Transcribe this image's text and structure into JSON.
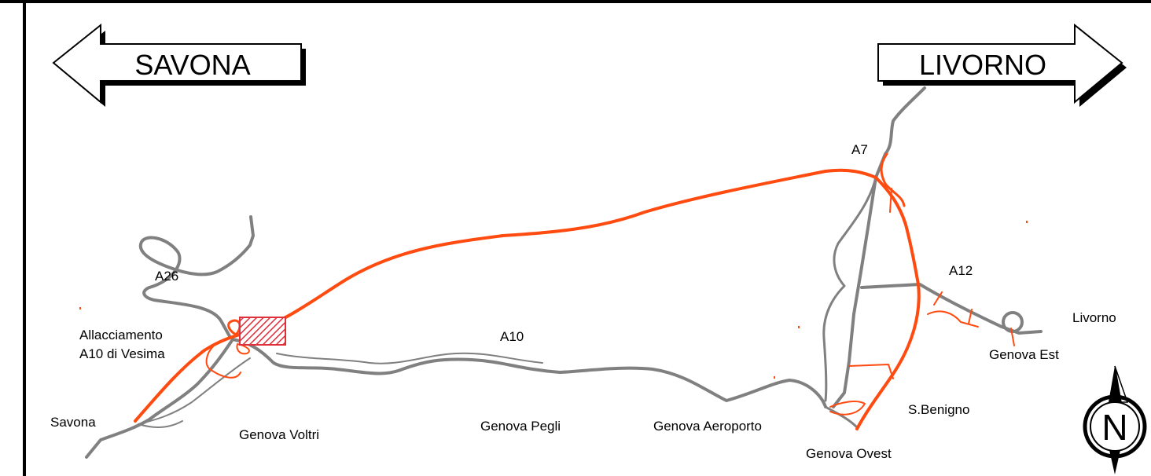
{
  "signs": {
    "west": "SAVONA",
    "east": "LIVORNO"
  },
  "roads": {
    "a26": "A26",
    "a10": "A10",
    "a7": "A7",
    "a12": "A12"
  },
  "places": {
    "allacciamento_1": "Allacciamento",
    "allacciamento_2": "A10 di Vesima",
    "savona": "Savona",
    "voltri": "Genova Voltri",
    "pegli": "Genova Pegli",
    "aeroporto": "Genova Aeroporto",
    "ovest": "Genova Ovest",
    "benigno": "S.Benigno",
    "est": "Genova Est",
    "livorno": "Livorno"
  },
  "compass": {
    "letter": "N"
  },
  "colors": {
    "existing_road": "#808080",
    "new_road": "#ff4a10",
    "highlight": "#e0303a",
    "frame": "#000000"
  }
}
